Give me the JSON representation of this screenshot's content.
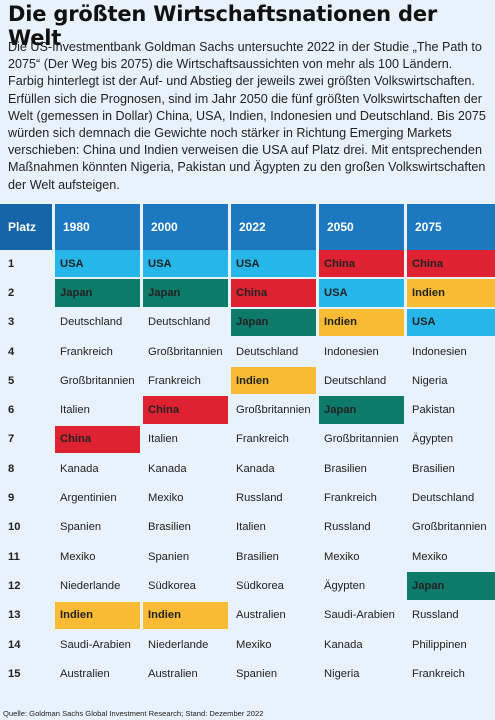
{
  "title": "Die größten Wirtschaftsnationen der Welt",
  "intro": "Die US-Investmentbank Goldman Sachs untersuchte 2022 in der Studie „The Path to 2075“ (Der Weg bis 2075) die Wirtschaftsaussichten von mehr als 100 Ländern. Farbig hinterlegt ist der Auf- und Abstieg der jeweils zwei größten Volkswirtschaften. Erfüllen sich die Prognosen, sind im Jahr 2050 die fünf größten Volkswirtschaften der Welt (gemessen in Dollar) China, USA, Indien, Indonesien und Deutschland. Bis 2075 würden sich demnach die Gewichte noch stärker in Richtung Emerging Markets verschieben: China und Indien verweisen die USA auf Platz drei. Mit entsprechenden Maßnahmen könnten Nigeria, Pakistan und Ägypten zu den großen Volkswirtschaften der Welt aufsteigen.",
  "colors": {
    "USA": "#27b6ea",
    "China": "#df2232",
    "Japan": "#0d7a6a",
    "Indien": "#f8bb33",
    "header": "#1c79c0",
    "background": "#e8f2fa"
  },
  "table": {
    "headers": [
      "Platz",
      "1980",
      "2000",
      "2022",
      "2050",
      "2075"
    ],
    "rows": [
      {
        "rank": "1",
        "cells": [
          "USA",
          "USA",
          "USA",
          "China",
          "China"
        ]
      },
      {
        "rank": "2",
        "cells": [
          "Japan",
          "Japan",
          "China",
          "USA",
          "Indien"
        ]
      },
      {
        "rank": "3",
        "cells": [
          "Deutschland",
          "Deutschland",
          "Japan",
          "Indien",
          "USA"
        ]
      },
      {
        "rank": "4",
        "cells": [
          "Frankreich",
          "Großbritannien",
          "Deutschland",
          "Indonesien",
          "Indonesien"
        ]
      },
      {
        "rank": "5",
        "cells": [
          "Großbritannien",
          "Frankreich",
          "Indien",
          "Deutschland",
          "Nigeria"
        ]
      },
      {
        "rank": "6",
        "cells": [
          "Italien",
          "China",
          "Großbritannien",
          "Japan",
          "Pakistan"
        ]
      },
      {
        "rank": "7",
        "cells": [
          "China",
          "Italien",
          "Frankreich",
          "Großbritannien",
          "Ägypten"
        ]
      },
      {
        "rank": "8",
        "cells": [
          "Kanada",
          "Kanada",
          "Kanada",
          "Brasilien",
          "Brasilien"
        ]
      },
      {
        "rank": "9",
        "cells": [
          "Argentinien",
          "Mexiko",
          "Russland",
          "Frankreich",
          "Deutschland"
        ]
      },
      {
        "rank": "10",
        "cells": [
          "Spanien",
          "Brasilien",
          "Italien",
          "Russland",
          "Großbritannien"
        ]
      },
      {
        "rank": "11",
        "cells": [
          "Mexiko",
          "Spanien",
          "Brasilien",
          "Mexiko",
          "Mexiko"
        ]
      },
      {
        "rank": "12",
        "cells": [
          "Niederlande",
          "Südkorea",
          "Südkorea",
          "Ägypten",
          "Japan"
        ]
      },
      {
        "rank": "13",
        "cells": [
          "Indien",
          "Indien",
          "Australien",
          "Saudi-Arabien",
          "Russland"
        ]
      },
      {
        "rank": "14",
        "cells": [
          "Saudi-Arabien",
          "Niederlande",
          "Mexiko",
          "Kanada",
          "Philippinen"
        ]
      },
      {
        "rank": "15",
        "cells": [
          "Australien",
          "Australien",
          "Spanien",
          "Nigeria",
          "Frankreich"
        ]
      }
    ]
  },
  "source": "Quelle: Goldman Sachs Global Investment Research; Stand: Dezember 2022"
}
